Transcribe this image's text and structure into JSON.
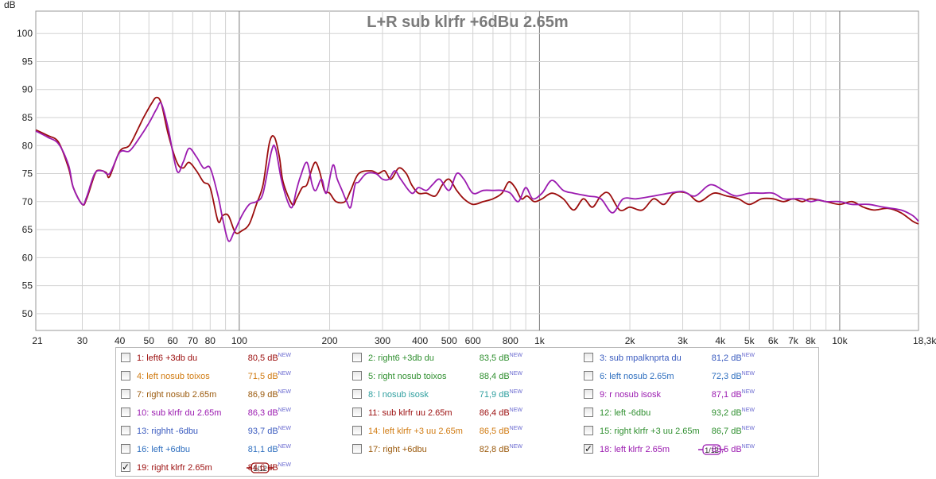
{
  "chart_data": {
    "type": "line",
    "title": "L+R sub klrfr +6dBu 2.65m",
    "ylabel": "dB",
    "xlabel": "",
    "x_scale": "log",
    "xlim": [
      21,
      18300
    ],
    "ylim": [
      47,
      104
    ],
    "grid": true,
    "y_ticks": [
      50,
      55,
      60,
      65,
      70,
      75,
      80,
      85,
      90,
      95,
      100
    ],
    "x_ticks": [
      {
        "v": 21,
        "label": "21"
      },
      {
        "v": 30,
        "label": "30"
      },
      {
        "v": 40,
        "label": "40"
      },
      {
        "v": 50,
        "label": "50"
      },
      {
        "v": 60,
        "label": "60"
      },
      {
        "v": 70,
        "label": "70"
      },
      {
        "v": 80,
        "label": "80"
      },
      {
        "v": 100,
        "label": "100"
      },
      {
        "v": 200,
        "label": "200"
      },
      {
        "v": 300,
        "label": "300"
      },
      {
        "v": 400,
        "label": "400"
      },
      {
        "v": 500,
        "label": "500"
      },
      {
        "v": 600,
        "label": "600"
      },
      {
        "v": 800,
        "label": "800"
      },
      {
        "v": 1000,
        "label": "1k"
      },
      {
        "v": 2000,
        "label": "2k"
      },
      {
        "v": 3000,
        "label": "3k"
      },
      {
        "v": 4000,
        "label": "4k"
      },
      {
        "v": 5000,
        "label": "5k"
      },
      {
        "v": 6000,
        "label": "6k"
      },
      {
        "v": 7000,
        "label": "7k"
      },
      {
        "v": 8000,
        "label": "8k"
      },
      {
        "v": 10000,
        "label": "10k"
      },
      {
        "v": 18300,
        "label": "18,3kHz"
      }
    ],
    "series": [
      {
        "name": "19: right klrfr 2.65m",
        "color": "#9b0d0d",
        "points": [
          [
            21,
            82.8
          ],
          [
            23,
            81.8
          ],
          [
            25,
            80.6
          ],
          [
            27,
            76
          ],
          [
            28,
            72.5
          ],
          [
            30,
            69.5
          ],
          [
            31,
            70.5
          ],
          [
            33,
            74.8
          ],
          [
            34,
            75.6
          ],
          [
            36,
            75.2
          ],
          [
            37,
            74.5
          ],
          [
            40,
            79
          ],
          [
            43,
            80
          ],
          [
            46,
            83
          ],
          [
            48,
            85
          ],
          [
            51,
            87.5
          ],
          [
            53,
            88.6
          ],
          [
            55,
            87.5
          ],
          [
            58,
            82
          ],
          [
            62,
            77
          ],
          [
            65,
            76
          ],
          [
            68,
            77
          ],
          [
            72,
            75.5
          ],
          [
            76,
            73.5
          ],
          [
            80,
            72.5
          ],
          [
            85,
            66.5
          ],
          [
            88,
            67.5
          ],
          [
            92,
            67.5
          ],
          [
            97,
            64.5
          ],
          [
            102,
            64.8
          ],
          [
            108,
            66
          ],
          [
            114,
            69.5
          ],
          [
            120,
            73
          ],
          [
            126,
            80.5
          ],
          [
            131,
            81.5
          ],
          [
            136,
            78
          ],
          [
            140,
            73.5
          ],
          [
            150,
            69.5
          ],
          [
            155,
            70.5
          ],
          [
            162,
            72.5
          ],
          [
            168,
            73
          ],
          [
            175,
            76
          ],
          [
            180,
            77
          ],
          [
            186,
            75
          ],
          [
            192,
            72
          ],
          [
            200,
            71.5
          ],
          [
            210,
            70
          ],
          [
            225,
            70
          ],
          [
            235,
            72
          ],
          [
            250,
            75
          ],
          [
            275,
            75.5
          ],
          [
            290,
            75
          ],
          [
            305,
            75.5
          ],
          [
            320,
            74
          ],
          [
            340,
            76
          ],
          [
            360,
            75
          ],
          [
            375,
            73
          ],
          [
            395,
            71.5
          ],
          [
            420,
            71.5
          ],
          [
            450,
            71
          ],
          [
            475,
            73
          ],
          [
            500,
            74
          ],
          [
            530,
            72
          ],
          [
            560,
            70.5
          ],
          [
            600,
            69.5
          ],
          [
            650,
            70
          ],
          [
            700,
            70.5
          ],
          [
            750,
            71.5
          ],
          [
            790,
            73.5
          ],
          [
            830,
            72.5
          ],
          [
            870,
            70.5
          ],
          [
            910,
            71
          ],
          [
            960,
            70
          ],
          [
            1020,
            70.5
          ],
          [
            1100,
            71.5
          ],
          [
            1200,
            70.5
          ],
          [
            1300,
            68.5
          ],
          [
            1400,
            70.5
          ],
          [
            1500,
            69
          ],
          [
            1600,
            71
          ],
          [
            1700,
            71.5
          ],
          [
            1850,
            68.5
          ],
          [
            2000,
            69
          ],
          [
            2200,
            68.5
          ],
          [
            2400,
            70.5
          ],
          [
            2600,
            69.5
          ],
          [
            2800,
            71.5
          ],
          [
            3100,
            71.5
          ],
          [
            3400,
            70
          ],
          [
            3800,
            71.5
          ],
          [
            4200,
            71
          ],
          [
            4600,
            70.5
          ],
          [
            5000,
            69.5
          ],
          [
            5500,
            70.5
          ],
          [
            6000,
            70.5
          ],
          [
            6500,
            70
          ],
          [
            7000,
            70.5
          ],
          [
            7500,
            70
          ],
          [
            8000,
            70.5
          ],
          [
            9000,
            70
          ],
          [
            10000,
            69.5
          ],
          [
            11000,
            70
          ],
          [
            12000,
            69
          ],
          [
            13000,
            68.5
          ],
          [
            14500,
            68.8
          ],
          [
            16000,
            68
          ],
          [
            17500,
            66.5
          ],
          [
            18300,
            66
          ]
        ]
      },
      {
        "name": "18: left klrfr 2.65m",
        "color": "#9b1bb0",
        "points": [
          [
            21,
            82.6
          ],
          [
            23,
            81.5
          ],
          [
            25,
            80.3
          ],
          [
            27,
            76.5
          ],
          [
            28,
            72.5
          ],
          [
            30,
            69.5
          ],
          [
            31,
            70.8
          ],
          [
            33,
            75
          ],
          [
            35,
            75.5
          ],
          [
            37,
            75
          ],
          [
            40,
            78.8
          ],
          [
            43,
            79
          ],
          [
            46,
            81
          ],
          [
            50,
            84
          ],
          [
            53,
            86.5
          ],
          [
            55,
            87.5
          ],
          [
            58,
            83
          ],
          [
            62,
            75.5
          ],
          [
            65,
            77
          ],
          [
            68,
            79.5
          ],
          [
            72,
            78
          ],
          [
            76,
            76
          ],
          [
            80,
            76
          ],
          [
            85,
            71
          ],
          [
            88,
            67
          ],
          [
            92,
            63
          ],
          [
            96,
            64.5
          ],
          [
            102,
            67.5
          ],
          [
            108,
            69.5
          ],
          [
            114,
            70
          ],
          [
            120,
            71.5
          ],
          [
            128,
            79
          ],
          [
            132,
            79.5
          ],
          [
            138,
            74
          ],
          [
            145,
            70
          ],
          [
            150,
            69
          ],
          [
            155,
            72
          ],
          [
            160,
            74.5
          ],
          [
            168,
            77
          ],
          [
            175,
            73
          ],
          [
            180,
            72
          ],
          [
            188,
            74
          ],
          [
            195,
            71.5
          ],
          [
            205,
            76.5
          ],
          [
            212,
            74
          ],
          [
            220,
            72
          ],
          [
            228,
            70
          ],
          [
            235,
            69
          ],
          [
            243,
            73
          ],
          [
            250,
            73.5
          ],
          [
            265,
            75
          ],
          [
            285,
            75
          ],
          [
            300,
            74
          ],
          [
            315,
            74
          ],
          [
            330,
            75.5
          ],
          [
            345,
            74
          ],
          [
            375,
            71.5
          ],
          [
            395,
            72.5
          ],
          [
            420,
            72
          ],
          [
            440,
            73
          ],
          [
            465,
            74
          ],
          [
            500,
            72
          ],
          [
            530,
            75
          ],
          [
            560,
            74
          ],
          [
            600,
            71.5
          ],
          [
            650,
            72
          ],
          [
            700,
            72
          ],
          [
            750,
            72
          ],
          [
            800,
            71.5
          ],
          [
            850,
            70
          ],
          [
            900,
            72.5
          ],
          [
            950,
            70.5
          ],
          [
            1020,
            71.5
          ],
          [
            1100,
            73.8
          ],
          [
            1200,
            72
          ],
          [
            1300,
            71.5
          ],
          [
            1450,
            71
          ],
          [
            1600,
            70.5
          ],
          [
            1750,
            68
          ],
          [
            1900,
            70.5
          ],
          [
            2100,
            70.5
          ],
          [
            2400,
            71
          ],
          [
            2700,
            71.5
          ],
          [
            3000,
            71.8
          ],
          [
            3300,
            71
          ],
          [
            3700,
            73
          ],
          [
            4100,
            72
          ],
          [
            4500,
            71
          ],
          [
            5000,
            71.5
          ],
          [
            5500,
            71.5
          ],
          [
            6000,
            71.5
          ],
          [
            6500,
            70.5
          ],
          [
            7000,
            70.5
          ],
          [
            7500,
            70.5
          ],
          [
            8000,
            70
          ],
          [
            8500,
            70.3
          ],
          [
            9000,
            70
          ],
          [
            10000,
            70
          ],
          [
            11000,
            69.5
          ],
          [
            12500,
            69.5
          ],
          [
            14000,
            69
          ],
          [
            16000,
            68.5
          ],
          [
            17500,
            67.5
          ],
          [
            18300,
            66.5
          ]
        ]
      }
    ]
  },
  "legend": {
    "items": [
      {
        "label": "1: left6 +3db du",
        "value": "80,5 dB",
        "checked": false,
        "color": "#9b0d0d",
        "smooth": false
      },
      {
        "label": "2: right6 +3db du",
        "value": "83,5 dB",
        "checked": false,
        "color": "#2f8f2f",
        "smooth": false
      },
      {
        "label": "3: sub mpalknprta du",
        "value": "81,2 dB",
        "checked": false,
        "color": "#3a5bbf",
        "smooth": false
      },
      {
        "label": "4: left nosub toixos",
        "value": "71,5 dB",
        "checked": false,
        "color": "#d07a10",
        "smooth": false
      },
      {
        "label": "5: right nosub toixos",
        "value": "88,4 dB",
        "checked": false,
        "color": "#2f8f2f",
        "smooth": false
      },
      {
        "label": "6: left nosub 2.65m",
        "value": "72,3 dB",
        "checked": false,
        "color": "#2f6fbf",
        "smooth": false
      },
      {
        "label": "7: right nosub 2.65m",
        "value": "86,9 dB",
        "checked": false,
        "color": "#9b5a0d",
        "smooth": false
      },
      {
        "label": "8: l nosub isosk",
        "value": "71,9 dB",
        "checked": false,
        "color": "#2f9f9f",
        "smooth": false
      },
      {
        "label": "9: r nosub isosk",
        "value": "87,1 dB",
        "checked": false,
        "color": "#9b1bb0",
        "smooth": false
      },
      {
        "label": "10: sub klrfr du 2.65m",
        "value": "86,3 dB",
        "checked": false,
        "color": "#9b1bb0",
        "smooth": false
      },
      {
        "label": "11: sub klrfr uu 2.65m",
        "value": "86,4 dB",
        "checked": false,
        "color": "#9b0d0d",
        "smooth": false
      },
      {
        "label": "12: left -6dbu",
        "value": "93,2 dB",
        "checked": false,
        "color": "#2f8f2f",
        "smooth": false
      },
      {
        "label": "13: righht -6dbu",
        "value": "93,7 dB",
        "checked": false,
        "color": "#3a5bbf",
        "smooth": false
      },
      {
        "label": "14: left klrfr +3 uu 2.65m",
        "value": "86,5 dB",
        "checked": false,
        "color": "#d07a10",
        "smooth": false
      },
      {
        "label": "15: right klrfr +3 uu 2.65m",
        "value": "86,7 dB",
        "checked": false,
        "color": "#2f8f2f",
        "smooth": false
      },
      {
        "label": "16: left +6dbu",
        "value": "81,1 dB",
        "checked": false,
        "color": "#2f6fbf",
        "smooth": false
      },
      {
        "label": "17: right +6dbu",
        "value": "82,8 dB",
        "checked": false,
        "color": "#9b5a0d",
        "smooth": false
      },
      {
        "label": "18: left klrfr 2.65m",
        "value": "83,5 dB",
        "checked": true,
        "color": "#9b1bb0",
        "smooth": true
      },
      {
        "label": "19: right klrfr 2.65m",
        "value": "84,6 dB",
        "checked": true,
        "color": "#9b0d0d",
        "smooth": true
      }
    ],
    "new_tag": "NEW",
    "smooth_label": "1/12",
    "checkmark": "✓"
  }
}
